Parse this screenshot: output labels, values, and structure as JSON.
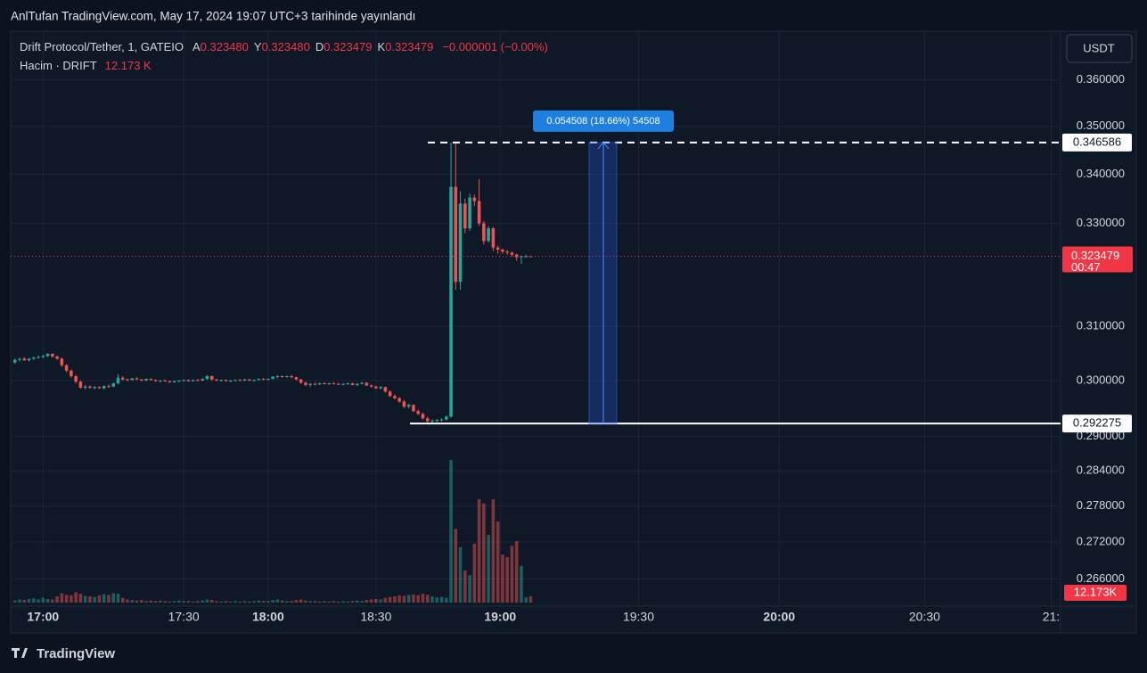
{
  "header": {
    "watermark": "AnlTufan TradingView.com, May 17, 2024 19:07 UTC+3 tarihinde yayınlandı",
    "currency_button": "USDT",
    "footer_logo": "TradingView"
  },
  "chart_data": {
    "type": "candlestick",
    "symbol": "Drift Protocol/Tether, 1, GATEIO",
    "legend_ohlc": [
      {
        "key": "A",
        "text": "0.323480"
      },
      {
        "key": "Y",
        "text": "0.323480"
      },
      {
        "key": "D",
        "text": "0.323479"
      },
      {
        "key": "K",
        "text": "0.323479"
      }
    ],
    "change": "−0.000001 (−0.00%)",
    "volume_title": "Hacim · DRIFT",
    "volume_legend": "12.173 K",
    "volume_axis_label": "12.173K",
    "countdown": "00:47",
    "up_color": "#26a69a",
    "down_color": "#ef5350",
    "log_scale": true,
    "ylim": [
      0.2622,
      0.3708
    ],
    "yticks": [
      {
        "value": 0.36,
        "label": "0.360000"
      },
      {
        "value": 0.35,
        "label": "0.350000"
      },
      {
        "value": 0.34,
        "label": "0.340000"
      },
      {
        "value": 0.33,
        "label": "0.330000"
      },
      {
        "value": 0.31,
        "label": "0.310000"
      },
      {
        "value": 0.3,
        "label": "0.300000"
      },
      {
        "value": 0.29,
        "label": "0.290000"
      },
      {
        "value": 0.284,
        "label": "0.284000"
      },
      {
        "value": 0.278,
        "label": "0.278000"
      },
      {
        "value": 0.272,
        "label": "0.272000"
      },
      {
        "value": 0.266,
        "label": "0.266000"
      }
    ],
    "xlim": [
      -0.9,
      223
    ],
    "xticks": [
      {
        "value": 6,
        "label": "17:00"
      },
      {
        "value": 36,
        "label": "17:30"
      },
      {
        "value": 54,
        "label": "18:00"
      },
      {
        "value": 77,
        "label": "18:30"
      },
      {
        "value": 103.5,
        "label": "19:00"
      },
      {
        "value": 133,
        "label": "19:30"
      },
      {
        "value": 163,
        "label": "20:00"
      },
      {
        "value": 194,
        "label": "20:30"
      },
      {
        "value": 221,
        "label": "21:"
      }
    ],
    "grid": true,
    "hlines": [
      {
        "value": 0.346586,
        "style": "dashed"
      },
      {
        "value": 0.292275,
        "style": "solid"
      }
    ],
    "measure": {
      "text": "0.054508 (18.66%) 54508"
    },
    "volume_ylim": [
      0,
      290000
    ],
    "ohlc": [
      [
        0.3033,
        0.304,
        0.303,
        0.3038
      ],
      [
        0.3038,
        0.3042,
        0.3035,
        0.304
      ],
      [
        0.304,
        0.3043,
        0.3036,
        0.3037
      ],
      [
        0.3037,
        0.3041,
        0.3035,
        0.304
      ],
      [
        0.304,
        0.3044,
        0.3038,
        0.3042
      ],
      [
        0.3042,
        0.3046,
        0.304,
        0.3043
      ],
      [
        0.3043,
        0.3047,
        0.3041,
        0.3045
      ],
      [
        0.3045,
        0.305,
        0.3043,
        0.3049
      ],
      [
        0.3049,
        0.305,
        0.3042,
        0.3044
      ],
      [
        0.3044,
        0.3046,
        0.3038,
        0.304
      ],
      [
        0.304,
        0.3042,
        0.3025,
        0.3028
      ],
      [
        0.3028,
        0.303,
        0.3015,
        0.3018
      ],
      [
        0.3018,
        0.302,
        0.3005,
        0.3008
      ],
      [
        0.3008,
        0.301,
        0.2995,
        0.2998
      ],
      [
        0.2998,
        0.3,
        0.2985,
        0.2987
      ],
      [
        0.2987,
        0.2992,
        0.2984,
        0.2989
      ],
      [
        0.2989,
        0.2991,
        0.2985,
        0.2987
      ],
      [
        0.2987,
        0.299,
        0.2984,
        0.2988
      ],
      [
        0.2988,
        0.299,
        0.2985,
        0.2986
      ],
      [
        0.2986,
        0.2991,
        0.2984,
        0.299
      ],
      [
        0.299,
        0.2993,
        0.2987,
        0.2989
      ],
      [
        0.2989,
        0.2996,
        0.2988,
        0.2995
      ],
      [
        0.2995,
        0.3012,
        0.2993,
        0.3005
      ],
      [
        0.3005,
        0.3008,
        0.3,
        0.3002
      ],
      [
        0.3002,
        0.3004,
        0.2999,
        0.3001
      ],
      [
        0.3001,
        0.3005,
        0.3,
        0.3004
      ],
      [
        0.3004,
        0.3006,
        0.3001,
        0.3002
      ],
      [
        0.3002,
        0.3003,
        0.2999,
        0.3
      ],
      [
        0.3,
        0.3004,
        0.2999,
        0.3003
      ],
      [
        0.3003,
        0.3004,
        0.3,
        0.3001
      ],
      [
        0.3001,
        0.3002,
        0.2998,
        0.2999
      ],
      [
        0.2999,
        0.3001,
        0.2997,
        0.3
      ],
      [
        0.3,
        0.3002,
        0.2998,
        0.2999
      ],
      [
        0.2999,
        0.3,
        0.2996,
        0.2997
      ],
      [
        0.2997,
        0.3,
        0.2996,
        0.2999
      ],
      [
        0.2999,
        0.3001,
        0.2997,
        0.3
      ],
      [
        0.3,
        0.3002,
        0.2998,
        0.3001
      ],
      [
        0.3001,
        0.3002,
        0.2998,
        0.2999
      ],
      [
        0.2999,
        0.3002,
        0.2998,
        0.3001
      ],
      [
        0.3001,
        0.3003,
        0.2999,
        0.3
      ],
      [
        0.3,
        0.3004,
        0.2999,
        0.3003
      ],
      [
        0.3003,
        0.301,
        0.3001,
        0.3008
      ],
      [
        0.3008,
        0.3009,
        0.3,
        0.3002
      ],
      [
        0.3002,
        0.3003,
        0.2999,
        0.3
      ],
      [
        0.3,
        0.3002,
        0.2998,
        0.3001
      ],
      [
        0.3001,
        0.3002,
        0.2998,
        0.2999
      ],
      [
        0.2999,
        0.3001,
        0.2997,
        0.3
      ],
      [
        0.3,
        0.3002,
        0.2998,
        0.3001
      ],
      [
        0.3001,
        0.3003,
        0.2999,
        0.3
      ],
      [
        0.3,
        0.3003,
        0.2999,
        0.3002
      ],
      [
        0.3002,
        0.3003,
        0.2999,
        0.3
      ],
      [
        0.3,
        0.3002,
        0.2998,
        0.3001
      ],
      [
        0.3001,
        0.3004,
        0.3,
        0.3003
      ],
      [
        0.3003,
        0.3005,
        0.3001,
        0.3002
      ],
      [
        0.3002,
        0.3004,
        0.3,
        0.3003
      ],
      [
        0.3003,
        0.3008,
        0.3002,
        0.3007
      ],
      [
        0.3007,
        0.301,
        0.3004,
        0.3008
      ],
      [
        0.3008,
        0.3009,
        0.3005,
        0.3007
      ],
      [
        0.3007,
        0.3009,
        0.3005,
        0.3008
      ],
      [
        0.3008,
        0.301,
        0.3004,
        0.3006
      ],
      [
        0.3006,
        0.3007,
        0.3,
        0.3002
      ],
      [
        0.3002,
        0.3003,
        0.2994,
        0.2996
      ],
      [
        0.2996,
        0.2998,
        0.299,
        0.2992
      ],
      [
        0.2992,
        0.2995,
        0.2988,
        0.2994
      ],
      [
        0.2994,
        0.2996,
        0.2991,
        0.2993
      ],
      [
        0.2993,
        0.2996,
        0.2992,
        0.2995
      ],
      [
        0.2995,
        0.2997,
        0.2993,
        0.2994
      ],
      [
        0.2994,
        0.2996,
        0.2992,
        0.2995
      ],
      [
        0.2995,
        0.2997,
        0.2993,
        0.2994
      ],
      [
        0.2994,
        0.2996,
        0.2992,
        0.2993
      ],
      [
        0.2993,
        0.2995,
        0.2991,
        0.2994
      ],
      [
        0.2994,
        0.2996,
        0.2992,
        0.2995
      ],
      [
        0.2995,
        0.2996,
        0.2991,
        0.2992
      ],
      [
        0.2992,
        0.2995,
        0.299,
        0.2994
      ],
      [
        0.2994,
        0.2997,
        0.2993,
        0.2996
      ],
      [
        0.2996,
        0.2997,
        0.299,
        0.2991
      ],
      [
        0.2991,
        0.2993,
        0.2987,
        0.2989
      ],
      [
        0.2989,
        0.2991,
        0.2985,
        0.2986
      ],
      [
        0.2986,
        0.299,
        0.2984,
        0.2988
      ],
      [
        0.2988,
        0.2989,
        0.2978,
        0.298
      ],
      [
        0.298,
        0.2982,
        0.297,
        0.2972
      ],
      [
        0.2972,
        0.2975,
        0.2966,
        0.2968
      ],
      [
        0.2968,
        0.297,
        0.296,
        0.2962
      ],
      [
        0.2962,
        0.2965,
        0.295,
        0.2953
      ],
      [
        0.2953,
        0.2958,
        0.295,
        0.2956
      ],
      [
        0.2956,
        0.2957,
        0.2943,
        0.2945
      ],
      [
        0.2945,
        0.2948,
        0.2938,
        0.294
      ],
      [
        0.294,
        0.2942,
        0.293,
        0.2932
      ],
      [
        0.2932,
        0.2935,
        0.2925,
        0.2927
      ],
      [
        0.2927,
        0.293,
        0.2923,
        0.2928
      ],
      [
        0.2928,
        0.2931,
        0.2925,
        0.2929
      ],
      [
        0.2929,
        0.2932,
        0.2926,
        0.293
      ],
      [
        0.293,
        0.2937,
        0.2928,
        0.2935
      ],
      [
        0.2935,
        0.3466,
        0.2933,
        0.3374
      ],
      [
        0.3374,
        0.3466,
        0.317,
        0.3185
      ],
      [
        0.3185,
        0.3365,
        0.317,
        0.334
      ],
      [
        0.334,
        0.335,
        0.328,
        0.329
      ],
      [
        0.329,
        0.336,
        0.3285,
        0.3352
      ],
      [
        0.3352,
        0.3358,
        0.3335,
        0.3345
      ],
      [
        0.3345,
        0.339,
        0.3295,
        0.33
      ],
      [
        0.33,
        0.3305,
        0.3258,
        0.3265
      ],
      [
        0.3265,
        0.3295,
        0.3262,
        0.329
      ],
      [
        0.329,
        0.3293,
        0.3245,
        0.3252
      ],
      [
        0.3252,
        0.3256,
        0.324,
        0.3248
      ],
      [
        0.3248,
        0.325,
        0.324,
        0.3244
      ],
      [
        0.3244,
        0.3247,
        0.3238,
        0.3242
      ],
      [
        0.3242,
        0.3244,
        0.3234,
        0.3238
      ],
      [
        0.3238,
        0.324,
        0.3226,
        0.3233
      ],
      [
        0.3233,
        0.3236,
        0.322,
        0.3235
      ],
      [
        0.3235,
        0.3238,
        0.3232,
        0.3235
      ],
      [
        0.32348,
        0.32348,
        0.323479,
        0.323479
      ]
    ],
    "volume": [
      4000,
      6000,
      5000,
      7000,
      8000,
      6000,
      9000,
      7000,
      6000,
      12000,
      18000,
      15000,
      14000,
      20000,
      17000,
      13000,
      12000,
      11000,
      14000,
      16000,
      15000,
      18000,
      17000,
      9000,
      6000,
      5000,
      4000,
      5000,
      3000,
      4000,
      3000,
      4000,
      3000,
      2000,
      3000,
      4000,
      3000,
      3000,
      2000,
      3000,
      4000,
      6000,
      5000,
      3000,
      2000,
      3000,
      2000,
      3000,
      2000,
      3000,
      2000,
      3000,
      4000,
      3000,
      3000,
      5000,
      6000,
      4000,
      3000,
      3000,
      5000,
      6000,
      4000,
      3000,
      3000,
      2000,
      3000,
      2000,
      3000,
      2000,
      3000,
      2000,
      3000,
      4000,
      3000,
      5000,
      6000,
      7000,
      6000,
      9000,
      11000,
      12000,
      14000,
      13000,
      15000,
      16000,
      14000,
      17000,
      15000,
      12000,
      10000,
      11000,
      9000,
      276000,
      143000,
      107000,
      62000,
      53000,
      114000,
      200000,
      192000,
      131000,
      200000,
      157000,
      93000,
      88000,
      110000,
      119000,
      71000,
      10000,
      12173
    ]
  }
}
